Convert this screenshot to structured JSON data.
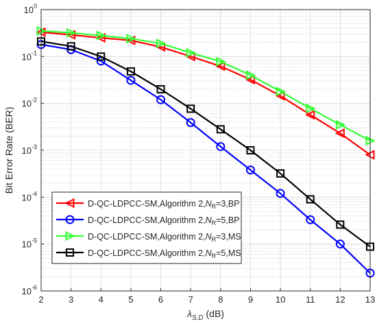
{
  "chart_data": {
    "type": "line",
    "xlabel": "λS,D (dB)",
    "xlabel_parts": {
      "symbol": "λ",
      "subscript": "S,D",
      "unit": " (dB)"
    },
    "ylabel": "Bit Error Rate (BER)",
    "x": [
      2,
      3,
      4,
      5,
      6,
      7,
      8,
      9,
      10,
      11,
      12,
      13
    ],
    "xlim": [
      2,
      13
    ],
    "ylim": [
      1e-06,
      1
    ],
    "yscale": "log",
    "x_ticks": [
      "2",
      "3",
      "4",
      "5",
      "6",
      "7",
      "8",
      "9",
      "10",
      "11",
      "12",
      "13"
    ],
    "y_ticks": [
      {
        "base": "10",
        "exp": "0",
        "value": 1
      },
      {
        "base": "10",
        "exp": "-1",
        "value": 0.1
      },
      {
        "base": "10",
        "exp": "-2",
        "value": 0.01
      },
      {
        "base": "10",
        "exp": "-3",
        "value": 0.001
      },
      {
        "base": "10",
        "exp": "-4",
        "value": 0.0001
      },
      {
        "base": "10",
        "exp": "-5",
        "value": 1e-05
      },
      {
        "base": "10",
        "exp": "-6",
        "value": 1e-06
      }
    ],
    "grid": true,
    "legend_position": "lower-left",
    "series": [
      {
        "name": "D-QC-LDPCC-SM,Algorithm 2,NR=3,BP",
        "label_parts": {
          "prefix": "D-QC-LDPCC-SM,Algorithm 2,",
          "var": "N",
          "sub": "R",
          "suffix": "=3,BP"
        },
        "color": "#ff0000",
        "marker": "triangle-left",
        "values": [
          0.33,
          0.29,
          0.25,
          0.22,
          0.16,
          0.1,
          0.062,
          0.032,
          0.0145,
          0.0057,
          0.0023,
          0.0008
        ]
      },
      {
        "name": "D-QC-LDPCC-SM,Algorithm 2,NR=5,BP",
        "label_parts": {
          "prefix": "D-QC-LDPCC-SM,Algorithm 2,",
          "var": "N",
          "sub": "R",
          "suffix": "=5,BP"
        },
        "color": "#0000ff",
        "marker": "circle",
        "values": [
          0.18,
          0.14,
          0.08,
          0.031,
          0.012,
          0.0039,
          0.0012,
          0.00038,
          0.00012,
          3.3e-05,
          1e-05,
          2.4e-06
        ]
      },
      {
        "name": "D-QC-LDPCC-SM,Algorithm 2,NR=3,MS",
        "label_parts": {
          "prefix": "D-QC-LDPCC-SM,Algorithm 2,",
          "var": "N",
          "sub": "R",
          "suffix": "=3,MS"
        },
        "color": "#33ff33",
        "marker": "triangle-right",
        "values": [
          0.35,
          0.32,
          0.28,
          0.24,
          0.19,
          0.12,
          0.078,
          0.04,
          0.018,
          0.0078,
          0.0035,
          0.0016
        ]
      },
      {
        "name": "D-QC-LDPCC-SM,Algorithm 2,NR=5,MS",
        "label_parts": {
          "prefix": "D-QC-LDPCC-SM,Algorithm 2,",
          "var": "N",
          "sub": "R",
          "suffix": "=5,MS"
        },
        "color": "#000000",
        "marker": "square",
        "values": [
          0.21,
          0.165,
          0.1,
          0.048,
          0.02,
          0.0077,
          0.0028,
          0.001,
          0.00032,
          9e-05,
          2.6e-05,
          8.8e-06
        ]
      }
    ]
  }
}
